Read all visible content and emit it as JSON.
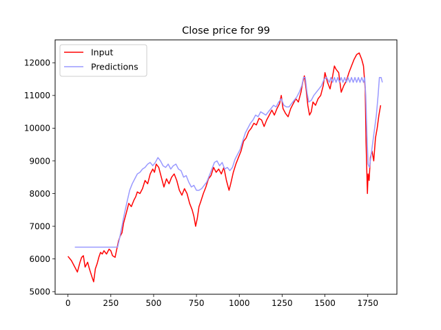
{
  "chart_data": {
    "type": "line",
    "title": "Close price for 99",
    "xlabel": "",
    "ylabel": "",
    "xlim": [
      -75,
      1920
    ],
    "ylim": [
      4920,
      12700
    ],
    "xticks": [
      0,
      250,
      500,
      750,
      1000,
      1250,
      1500,
      1750
    ],
    "yticks": [
      5000,
      6000,
      7000,
      8000,
      9000,
      10000,
      11000,
      12000
    ],
    "legend_position": "upper-left",
    "grid": false,
    "series": [
      {
        "name": "Input",
        "color": "#ff0000",
        "points": [
          [
            0,
            6080
          ],
          [
            20,
            5950
          ],
          [
            40,
            5750
          ],
          [
            55,
            5600
          ],
          [
            70,
            5900
          ],
          [
            80,
            6050
          ],
          [
            90,
            6100
          ],
          [
            100,
            5750
          ],
          [
            115,
            5900
          ],
          [
            125,
            5700
          ],
          [
            140,
            5450
          ],
          [
            150,
            5300
          ],
          [
            160,
            5700
          ],
          [
            170,
            5850
          ],
          [
            180,
            6050
          ],
          [
            190,
            6200
          ],
          [
            200,
            6150
          ],
          [
            210,
            6250
          ],
          [
            225,
            6150
          ],
          [
            240,
            6300
          ],
          [
            250,
            6250
          ],
          [
            260,
            6100
          ],
          [
            275,
            6050
          ],
          [
            285,
            6300
          ],
          [
            295,
            6550
          ],
          [
            305,
            6700
          ],
          [
            315,
            6800
          ],
          [
            325,
            7100
          ],
          [
            340,
            7400
          ],
          [
            355,
            7700
          ],
          [
            370,
            7600
          ],
          [
            385,
            7800
          ],
          [
            395,
            7900
          ],
          [
            405,
            8050
          ],
          [
            420,
            8000
          ],
          [
            435,
            8150
          ],
          [
            450,
            8400
          ],
          [
            465,
            8300
          ],
          [
            480,
            8600
          ],
          [
            495,
            8750
          ],
          [
            505,
            8650
          ],
          [
            515,
            8900
          ],
          [
            530,
            8800
          ],
          [
            545,
            8500
          ],
          [
            560,
            8200
          ],
          [
            575,
            8450
          ],
          [
            590,
            8300
          ],
          [
            605,
            8500
          ],
          [
            620,
            8600
          ],
          [
            635,
            8400
          ],
          [
            650,
            8100
          ],
          [
            665,
            7950
          ],
          [
            680,
            8150
          ],
          [
            695,
            8000
          ],
          [
            710,
            7700
          ],
          [
            725,
            7500
          ],
          [
            735,
            7300
          ],
          [
            745,
            7000
          ],
          [
            755,
            7250
          ],
          [
            765,
            7600
          ],
          [
            775,
            7750
          ],
          [
            790,
            8000
          ],
          [
            805,
            8200
          ],
          [
            820,
            8450
          ],
          [
            835,
            8550
          ],
          [
            850,
            8800
          ],
          [
            865,
            8650
          ],
          [
            880,
            8750
          ],
          [
            895,
            8600
          ],
          [
            910,
            8800
          ],
          [
            925,
            8400
          ],
          [
            940,
            8100
          ],
          [
            950,
            8300
          ],
          [
            965,
            8650
          ],
          [
            980,
            8900
          ],
          [
            995,
            9100
          ],
          [
            1010,
            9300
          ],
          [
            1025,
            9600
          ],
          [
            1040,
            9700
          ],
          [
            1055,
            9900
          ],
          [
            1070,
            10000
          ],
          [
            1085,
            10150
          ],
          [
            1100,
            10100
          ],
          [
            1115,
            10300
          ],
          [
            1130,
            10250
          ],
          [
            1145,
            10050
          ],
          [
            1160,
            10250
          ],
          [
            1175,
            10400
          ],
          [
            1190,
            10550
          ],
          [
            1205,
            10400
          ],
          [
            1220,
            10600
          ],
          [
            1235,
            10750
          ],
          [
            1245,
            11000
          ],
          [
            1255,
            10600
          ],
          [
            1270,
            10450
          ],
          [
            1285,
            10350
          ],
          [
            1300,
            10600
          ],
          [
            1315,
            10750
          ],
          [
            1330,
            10900
          ],
          [
            1345,
            10800
          ],
          [
            1360,
            11100
          ],
          [
            1370,
            11400
          ],
          [
            1380,
            11600
          ],
          [
            1390,
            11200
          ],
          [
            1400,
            10700
          ],
          [
            1410,
            10400
          ],
          [
            1420,
            10500
          ],
          [
            1430,
            10800
          ],
          [
            1445,
            10700
          ],
          [
            1460,
            10900
          ],
          [
            1475,
            11000
          ],
          [
            1490,
            11300
          ],
          [
            1500,
            11700
          ],
          [
            1515,
            11400
          ],
          [
            1530,
            11200
          ],
          [
            1545,
            11600
          ],
          [
            1555,
            11900
          ],
          [
            1565,
            11800
          ],
          [
            1580,
            11700
          ],
          [
            1595,
            11100
          ],
          [
            1610,
            11300
          ],
          [
            1625,
            11450
          ],
          [
            1640,
            11700
          ],
          [
            1655,
            11900
          ],
          [
            1670,
            12100
          ],
          [
            1685,
            12250
          ],
          [
            1700,
            12300
          ],
          [
            1715,
            12100
          ],
          [
            1725,
            11900
          ],
          [
            1735,
            11200
          ],
          [
            1740,
            9600
          ],
          [
            1748,
            8000
          ],
          [
            1752,
            8600
          ],
          [
            1758,
            8400
          ],
          [
            1765,
            9100
          ],
          [
            1775,
            9300
          ],
          [
            1785,
            9000
          ],
          [
            1795,
            9700
          ],
          [
            1805,
            10000
          ],
          [
            1815,
            10400
          ],
          [
            1825,
            10700
          ]
        ]
      },
      {
        "name": "Predictions",
        "color": "#9999ff",
        "points": [
          [
            40,
            6360
          ],
          [
            290,
            6360
          ],
          [
            300,
            6600
          ],
          [
            315,
            7000
          ],
          [
            330,
            7400
          ],
          [
            345,
            7750
          ],
          [
            360,
            8100
          ],
          [
            375,
            8300
          ],
          [
            390,
            8450
          ],
          [
            405,
            8600
          ],
          [
            420,
            8650
          ],
          [
            435,
            8750
          ],
          [
            450,
            8800
          ],
          [
            465,
            8900
          ],
          [
            480,
            8950
          ],
          [
            495,
            8850
          ],
          [
            510,
            8950
          ],
          [
            525,
            9100
          ],
          [
            540,
            9000
          ],
          [
            555,
            8850
          ],
          [
            570,
            8800
          ],
          [
            585,
            8900
          ],
          [
            600,
            8750
          ],
          [
            615,
            8850
          ],
          [
            630,
            8900
          ],
          [
            645,
            8750
          ],
          [
            660,
            8700
          ],
          [
            675,
            8500
          ],
          [
            690,
            8550
          ],
          [
            705,
            8350
          ],
          [
            720,
            8200
          ],
          [
            735,
            8250
          ],
          [
            750,
            8100
          ],
          [
            765,
            8100
          ],
          [
            780,
            8150
          ],
          [
            795,
            8250
          ],
          [
            810,
            8350
          ],
          [
            825,
            8550
          ],
          [
            840,
            8750
          ],
          [
            855,
            8950
          ],
          [
            870,
            9000
          ],
          [
            885,
            8850
          ],
          [
            900,
            8950
          ],
          [
            915,
            8750
          ],
          [
            930,
            8800
          ],
          [
            945,
            8700
          ],
          [
            960,
            8800
          ],
          [
            975,
            9050
          ],
          [
            990,
            9200
          ],
          [
            1005,
            9350
          ],
          [
            1020,
            9600
          ],
          [
            1035,
            9850
          ],
          [
            1050,
            10000
          ],
          [
            1065,
            10150
          ],
          [
            1080,
            10250
          ],
          [
            1095,
            10400
          ],
          [
            1110,
            10350
          ],
          [
            1125,
            10500
          ],
          [
            1140,
            10450
          ],
          [
            1155,
            10400
          ],
          [
            1170,
            10500
          ],
          [
            1185,
            10600
          ],
          [
            1200,
            10700
          ],
          [
            1215,
            10650
          ],
          [
            1230,
            10800
          ],
          [
            1245,
            10900
          ],
          [
            1260,
            10700
          ],
          [
            1275,
            10650
          ],
          [
            1290,
            10650
          ],
          [
            1305,
            10750
          ],
          [
            1320,
            10850
          ],
          [
            1335,
            10950
          ],
          [
            1350,
            11100
          ],
          [
            1365,
            11300
          ],
          [
            1375,
            11550
          ],
          [
            1385,
            11550
          ],
          [
            1395,
            11100
          ],
          [
            1405,
            10800
          ],
          [
            1420,
            10850
          ],
          [
            1435,
            11000
          ],
          [
            1450,
            11100
          ],
          [
            1465,
            11200
          ],
          [
            1480,
            11300
          ],
          [
            1495,
            11500
          ],
          [
            1510,
            11550
          ],
          [
            1525,
            11400
          ],
          [
            1535,
            11550
          ],
          [
            1545,
            11400
          ],
          [
            1555,
            11550
          ],
          [
            1565,
            11400
          ],
          [
            1575,
            11550
          ],
          [
            1585,
            11400
          ],
          [
            1595,
            11550
          ],
          [
            1605,
            11400
          ],
          [
            1615,
            11550
          ],
          [
            1625,
            11400
          ],
          [
            1635,
            11550
          ],
          [
            1645,
            11400
          ],
          [
            1655,
            11550
          ],
          [
            1665,
            11400
          ],
          [
            1675,
            11550
          ],
          [
            1685,
            11400
          ],
          [
            1695,
            11550
          ],
          [
            1705,
            11400
          ],
          [
            1715,
            11550
          ],
          [
            1725,
            11400
          ],
          [
            1732,
            11550
          ],
          [
            1738,
            11000
          ],
          [
            1745,
            9800
          ],
          [
            1752,
            8900
          ],
          [
            1760,
            8800
          ],
          [
            1770,
            9200
          ],
          [
            1780,
            9600
          ],
          [
            1790,
            10000
          ],
          [
            1800,
            10400
          ],
          [
            1810,
            11000
          ],
          [
            1818,
            11550
          ],
          [
            1828,
            11550
          ],
          [
            1835,
            11400
          ]
        ]
      }
    ]
  }
}
